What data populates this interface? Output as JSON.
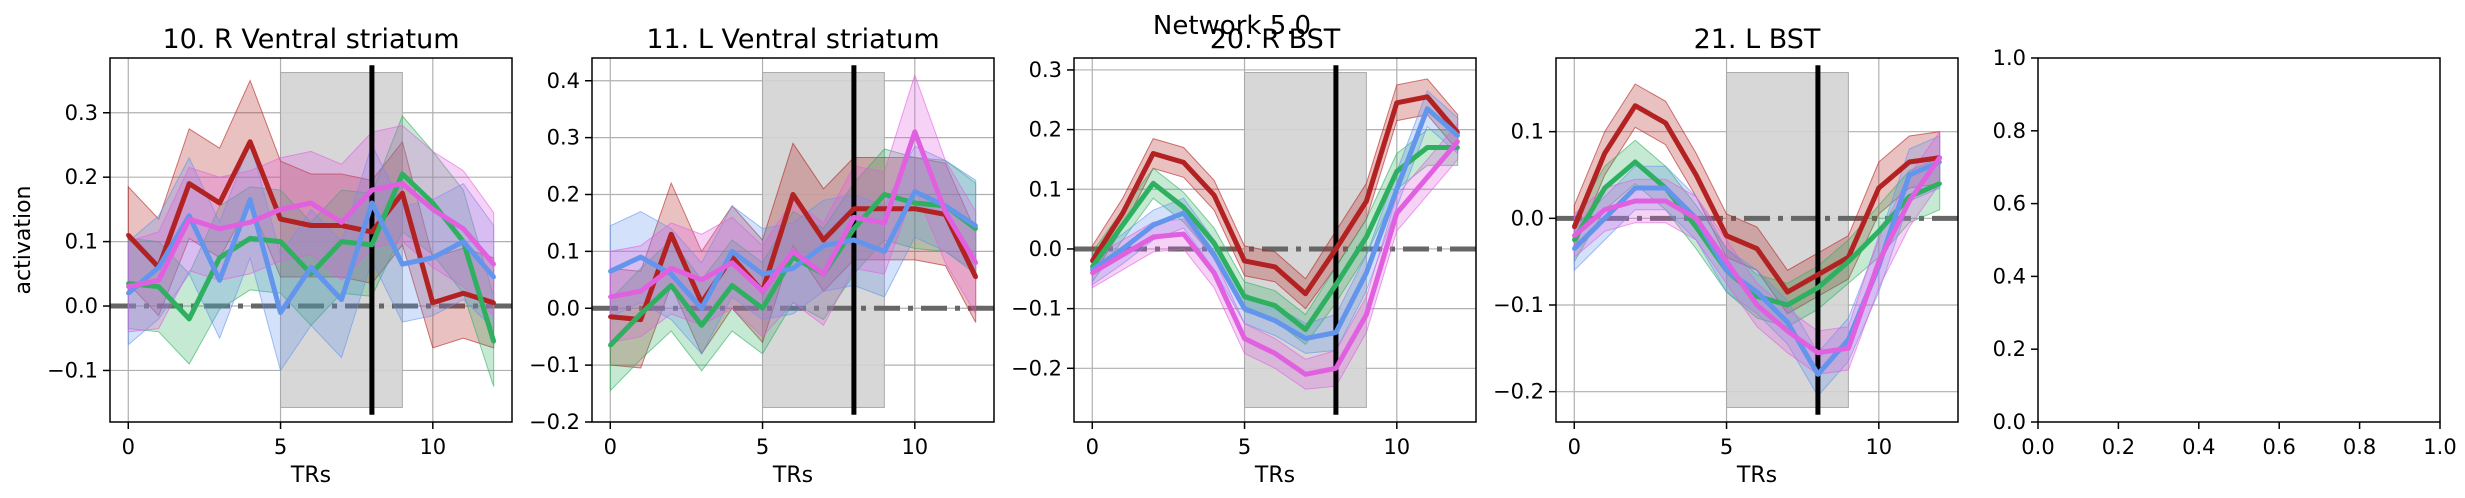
{
  "figure": {
    "suptitle": "Network 5.0"
  },
  "colors": {
    "red": "#b22222",
    "green": "#2eb060",
    "blue": "#6495ed",
    "magenta": "#e060e0",
    "shade": "#d3d3d3",
    "zero_line": "#666666",
    "grid": "#b0b0b0"
  },
  "chart_data": [
    {
      "type": "line",
      "title": "10. R Ventral striatum",
      "xlabel": "TRs",
      "ylabel": "activation",
      "xlim": [
        -0.6,
        12.6
      ],
      "ylim": [
        -0.18,
        0.385
      ],
      "xticks": [
        0,
        5,
        10
      ],
      "yticks": [
        -0.1,
        0.0,
        0.1,
        0.2,
        0.3
      ],
      "ytick_labels": [
        "−0.1",
        "0.0",
        "0.1",
        "0.2",
        "0.3"
      ],
      "grid": true,
      "shaded_window": [
        5,
        9
      ],
      "event_line_x": 8,
      "zero_line_y": 0,
      "x": [
        0,
        1,
        2,
        3,
        4,
        5,
        6,
        7,
        8,
        9,
        10,
        11,
        12
      ],
      "series": [
        {
          "color": "red",
          "values": [
            0.11,
            0.06,
            0.19,
            0.16,
            0.255,
            0.135,
            0.125,
            0.125,
            0.115,
            0.175,
            0.005,
            0.02,
            0.005
          ],
          "band": [
            0.075,
            0.075,
            0.085,
            0.085,
            0.095,
            0.09,
            0.08,
            0.08,
            0.08,
            0.08,
            0.07,
            0.07,
            0.07
          ]
        },
        {
          "color": "green",
          "values": [
            0.035,
            0.03,
            -0.02,
            0.075,
            0.105,
            0.1,
            0.05,
            0.1,
            0.095,
            0.205,
            0.16,
            0.1,
            -0.055
          ],
          "band": [
            0.07,
            0.07,
            0.07,
            0.08,
            0.08,
            0.08,
            0.08,
            0.08,
            0.08,
            0.09,
            0.08,
            0.08,
            0.07
          ]
        },
        {
          "color": "blue",
          "values": [
            0.02,
            0.06,
            0.14,
            0.04,
            0.165,
            -0.01,
            0.06,
            0.01,
            0.16,
            0.065,
            0.075,
            0.1,
            0.045
          ],
          "band": [
            0.08,
            0.08,
            0.09,
            0.09,
            0.09,
            0.09,
            0.09,
            0.09,
            0.09,
            0.09,
            0.09,
            0.09,
            0.08
          ]
        },
        {
          "color": "magenta",
          "values": [
            0.03,
            0.04,
            0.135,
            0.12,
            0.13,
            0.15,
            0.16,
            0.13,
            0.18,
            0.19,
            0.15,
            0.12,
            0.065
          ],
          "band": [
            0.07,
            0.075,
            0.08,
            0.08,
            0.08,
            0.08,
            0.08,
            0.09,
            0.09,
            0.09,
            0.09,
            0.09,
            0.08
          ]
        }
      ]
    },
    {
      "type": "line",
      "title": "11. L Ventral striatum",
      "xlabel": "TRs",
      "ylabel": "",
      "xlim": [
        -0.6,
        12.6
      ],
      "ylim": [
        -0.2,
        0.44
      ],
      "xticks": [
        0,
        5,
        10
      ],
      "yticks": [
        -0.2,
        -0.1,
        0.0,
        0.1,
        0.2,
        0.3,
        0.4
      ],
      "ytick_labels": [
        "−0.2",
        "−0.1",
        "0.0",
        "0.1",
        "0.2",
        "0.3",
        "0.4"
      ],
      "grid": true,
      "shaded_window": [
        5,
        9
      ],
      "event_line_x": 8,
      "zero_line_y": 0,
      "x": [
        0,
        1,
        2,
        3,
        4,
        5,
        6,
        7,
        8,
        9,
        10,
        11,
        12
      ],
      "series": [
        {
          "color": "red",
          "values": [
            -0.015,
            -0.02,
            0.13,
            0.01,
            0.09,
            0.03,
            0.2,
            0.12,
            0.175,
            0.175,
            0.175,
            0.165,
            0.055
          ],
          "band": [
            0.085,
            0.085,
            0.09,
            0.09,
            0.09,
            0.09,
            0.09,
            0.09,
            0.09,
            0.09,
            0.09,
            0.09,
            0.08
          ]
        },
        {
          "color": "green",
          "values": [
            -0.065,
            -0.01,
            0.04,
            -0.03,
            0.04,
            0.0,
            0.09,
            0.06,
            0.14,
            0.2,
            0.185,
            0.18,
            0.14
          ],
          "band": [
            0.08,
            0.08,
            0.08,
            0.08,
            0.08,
            0.08,
            0.08,
            0.08,
            0.08,
            0.08,
            0.08,
            0.08,
            0.08
          ]
        },
        {
          "color": "blue",
          "values": [
            0.065,
            0.09,
            0.06,
            0.0,
            0.1,
            0.06,
            0.07,
            0.11,
            0.12,
            0.1,
            0.205,
            0.18,
            0.145
          ],
          "band": [
            0.08,
            0.08,
            0.08,
            0.08,
            0.08,
            0.08,
            0.08,
            0.08,
            0.08,
            0.08,
            0.08,
            0.08,
            0.08
          ]
        },
        {
          "color": "magenta",
          "values": [
            0.02,
            0.03,
            0.07,
            0.05,
            0.08,
            0.03,
            0.1,
            0.06,
            0.16,
            0.15,
            0.31,
            0.17,
            0.08
          ],
          "band": [
            0.08,
            0.08,
            0.08,
            0.08,
            0.08,
            0.08,
            0.09,
            0.09,
            0.09,
            0.09,
            0.1,
            0.09,
            0.09
          ]
        }
      ]
    },
    {
      "type": "line",
      "title": "20. R BST",
      "xlabel": "TRs",
      "ylabel": "",
      "xlim": [
        -0.6,
        12.6
      ],
      "ylim": [
        -0.29,
        0.32
      ],
      "xticks": [
        0,
        5,
        10
      ],
      "yticks": [
        -0.2,
        -0.1,
        0.0,
        0.1,
        0.2,
        0.3
      ],
      "ytick_labels": [
        "−0.2",
        "−0.1",
        "0.0",
        "0.1",
        "0.2",
        "0.3"
      ],
      "grid": true,
      "shaded_window": [
        5,
        9
      ],
      "event_line_x": 8,
      "zero_line_y": 0,
      "x": [
        0,
        1,
        2,
        3,
        4,
        5,
        6,
        7,
        8,
        9,
        10,
        11,
        12
      ],
      "series": [
        {
          "color": "red",
          "values": [
            -0.02,
            0.06,
            0.16,
            0.145,
            0.09,
            -0.02,
            -0.03,
            -0.075,
            0.0,
            0.08,
            0.245,
            0.255,
            0.195
          ],
          "band": [
            0.025,
            0.025,
            0.025,
            0.025,
            0.025,
            0.025,
            0.025,
            0.025,
            0.03,
            0.03,
            0.03,
            0.03,
            0.03
          ]
        },
        {
          "color": "green",
          "values": [
            -0.03,
            0.04,
            0.11,
            0.07,
            0.01,
            -0.08,
            -0.095,
            -0.135,
            -0.06,
            0.02,
            0.13,
            0.17,
            0.17
          ],
          "band": [
            0.025,
            0.025,
            0.025,
            0.025,
            0.025,
            0.025,
            0.025,
            0.025,
            0.03,
            0.03,
            0.03,
            0.03,
            0.03
          ]
        },
        {
          "color": "blue",
          "values": [
            -0.035,
            0.0,
            0.04,
            0.06,
            -0.01,
            -0.1,
            -0.12,
            -0.15,
            -0.14,
            -0.04,
            0.1,
            0.235,
            0.19
          ],
          "band": [
            0.025,
            0.025,
            0.025,
            0.025,
            0.025,
            0.025,
            0.025,
            0.025,
            0.03,
            0.03,
            0.03,
            0.03,
            0.03
          ]
        },
        {
          "color": "magenta",
          "values": [
            -0.04,
            -0.01,
            0.02,
            0.025,
            -0.04,
            -0.15,
            -0.175,
            -0.21,
            -0.2,
            -0.11,
            0.06,
            0.12,
            0.18
          ],
          "band": [
            0.025,
            0.025,
            0.025,
            0.025,
            0.025,
            0.025,
            0.025,
            0.025,
            0.03,
            0.03,
            0.03,
            0.03,
            0.03
          ]
        }
      ]
    },
    {
      "type": "line",
      "title": "21. L BST",
      "xlabel": "TRs",
      "ylabel": "",
      "xlim": [
        -0.6,
        12.6
      ],
      "ylim": [
        -0.235,
        0.185
      ],
      "xticks": [
        0,
        5,
        10
      ],
      "yticks": [
        -0.2,
        -0.1,
        0.0,
        0.1
      ],
      "ytick_labels": [
        "−0.2",
        "−0.1",
        "0.0",
        "0.1"
      ],
      "grid": true,
      "shaded_window": [
        5,
        9
      ],
      "event_line_x": 8,
      "zero_line_y": 0,
      "x": [
        0,
        1,
        2,
        3,
        4,
        5,
        6,
        7,
        8,
        9,
        10,
        11,
        12
      ],
      "series": [
        {
          "color": "red",
          "values": [
            -0.01,
            0.075,
            0.13,
            0.11,
            0.05,
            -0.02,
            -0.035,
            -0.085,
            -0.065,
            -0.045,
            0.035,
            0.065,
            0.07
          ],
          "band": [
            0.025,
            0.025,
            0.025,
            0.025,
            0.025,
            0.025,
            0.025,
            0.025,
            0.025,
            0.025,
            0.03,
            0.03,
            0.03
          ]
        },
        {
          "color": "green",
          "values": [
            -0.025,
            0.035,
            0.065,
            0.035,
            -0.01,
            -0.06,
            -0.09,
            -0.1,
            -0.08,
            -0.05,
            -0.015,
            0.025,
            0.04
          ],
          "band": [
            0.025,
            0.025,
            0.025,
            0.025,
            0.025,
            0.025,
            0.025,
            0.025,
            0.025,
            0.025,
            0.03,
            0.03,
            0.03
          ]
        },
        {
          "color": "blue",
          "values": [
            -0.035,
            0.0,
            0.035,
            0.035,
            0.0,
            -0.06,
            -0.085,
            -0.12,
            -0.18,
            -0.14,
            -0.055,
            0.05,
            0.065
          ],
          "band": [
            0.025,
            0.025,
            0.025,
            0.025,
            0.025,
            0.025,
            0.025,
            0.025,
            0.025,
            0.025,
            0.03,
            0.03,
            0.03
          ]
        },
        {
          "color": "magenta",
          "values": [
            -0.02,
            0.01,
            0.02,
            0.02,
            0.0,
            -0.05,
            -0.1,
            -0.13,
            -0.155,
            -0.15,
            -0.05,
            0.02,
            0.07
          ],
          "band": [
            0.025,
            0.025,
            0.025,
            0.025,
            0.025,
            0.025,
            0.025,
            0.025,
            0.025,
            0.025,
            0.03,
            0.03,
            0.03
          ]
        }
      ]
    },
    {
      "type": "line",
      "title": "",
      "xlabel": "",
      "ylabel": "",
      "xlim": [
        0.0,
        1.0
      ],
      "ylim": [
        0.0,
        1.0
      ],
      "xticks": [
        0.0,
        0.2,
        0.4,
        0.6,
        0.8,
        1.0
      ],
      "xtick_labels": [
        "0.0",
        "0.2",
        "0.4",
        "0.6",
        "0.8",
        "1.0"
      ],
      "yticks": [
        0.0,
        0.2,
        0.4,
        0.6,
        0.8,
        1.0
      ],
      "ytick_labels": [
        "0.0",
        "0.2",
        "0.4",
        "0.6",
        "0.8",
        "1.0"
      ],
      "grid": false,
      "series": []
    }
  ]
}
